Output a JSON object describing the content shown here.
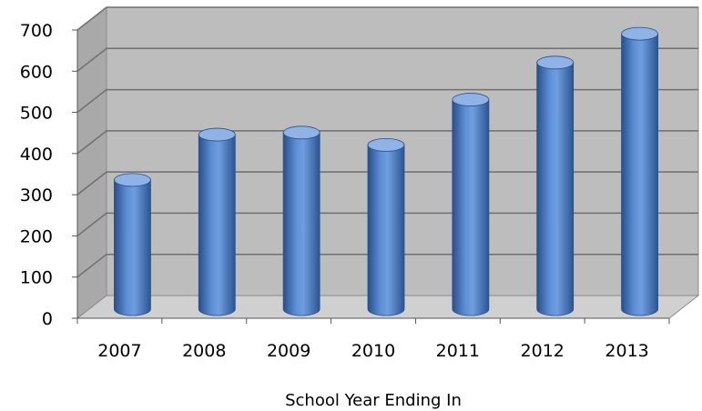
{
  "chart_data": {
    "type": "bar",
    "style": "3d-cylinder",
    "categories": [
      "2007",
      "2008",
      "2009",
      "2010",
      "2011",
      "2012",
      "2013"
    ],
    "values": [
      305,
      415,
      420,
      390,
      500,
      590,
      660
    ],
    "xlabel": "School Year Ending In",
    "ylabel": "",
    "ylim": [
      0,
      700
    ],
    "yticks": [
      "0",
      "100",
      "200",
      "300",
      "400",
      "500",
      "600",
      "700"
    ],
    "grid": true,
    "legend": "none"
  },
  "colors": {
    "bar": "#4a7cc4",
    "bar_dark": "#2a4f8a",
    "bar_light": "#8fb3e6",
    "wall": "#bdbdbd",
    "side_wall": "#a9a9a9",
    "floor": "#d0d0d0",
    "grid": "#6f6f6f"
  }
}
